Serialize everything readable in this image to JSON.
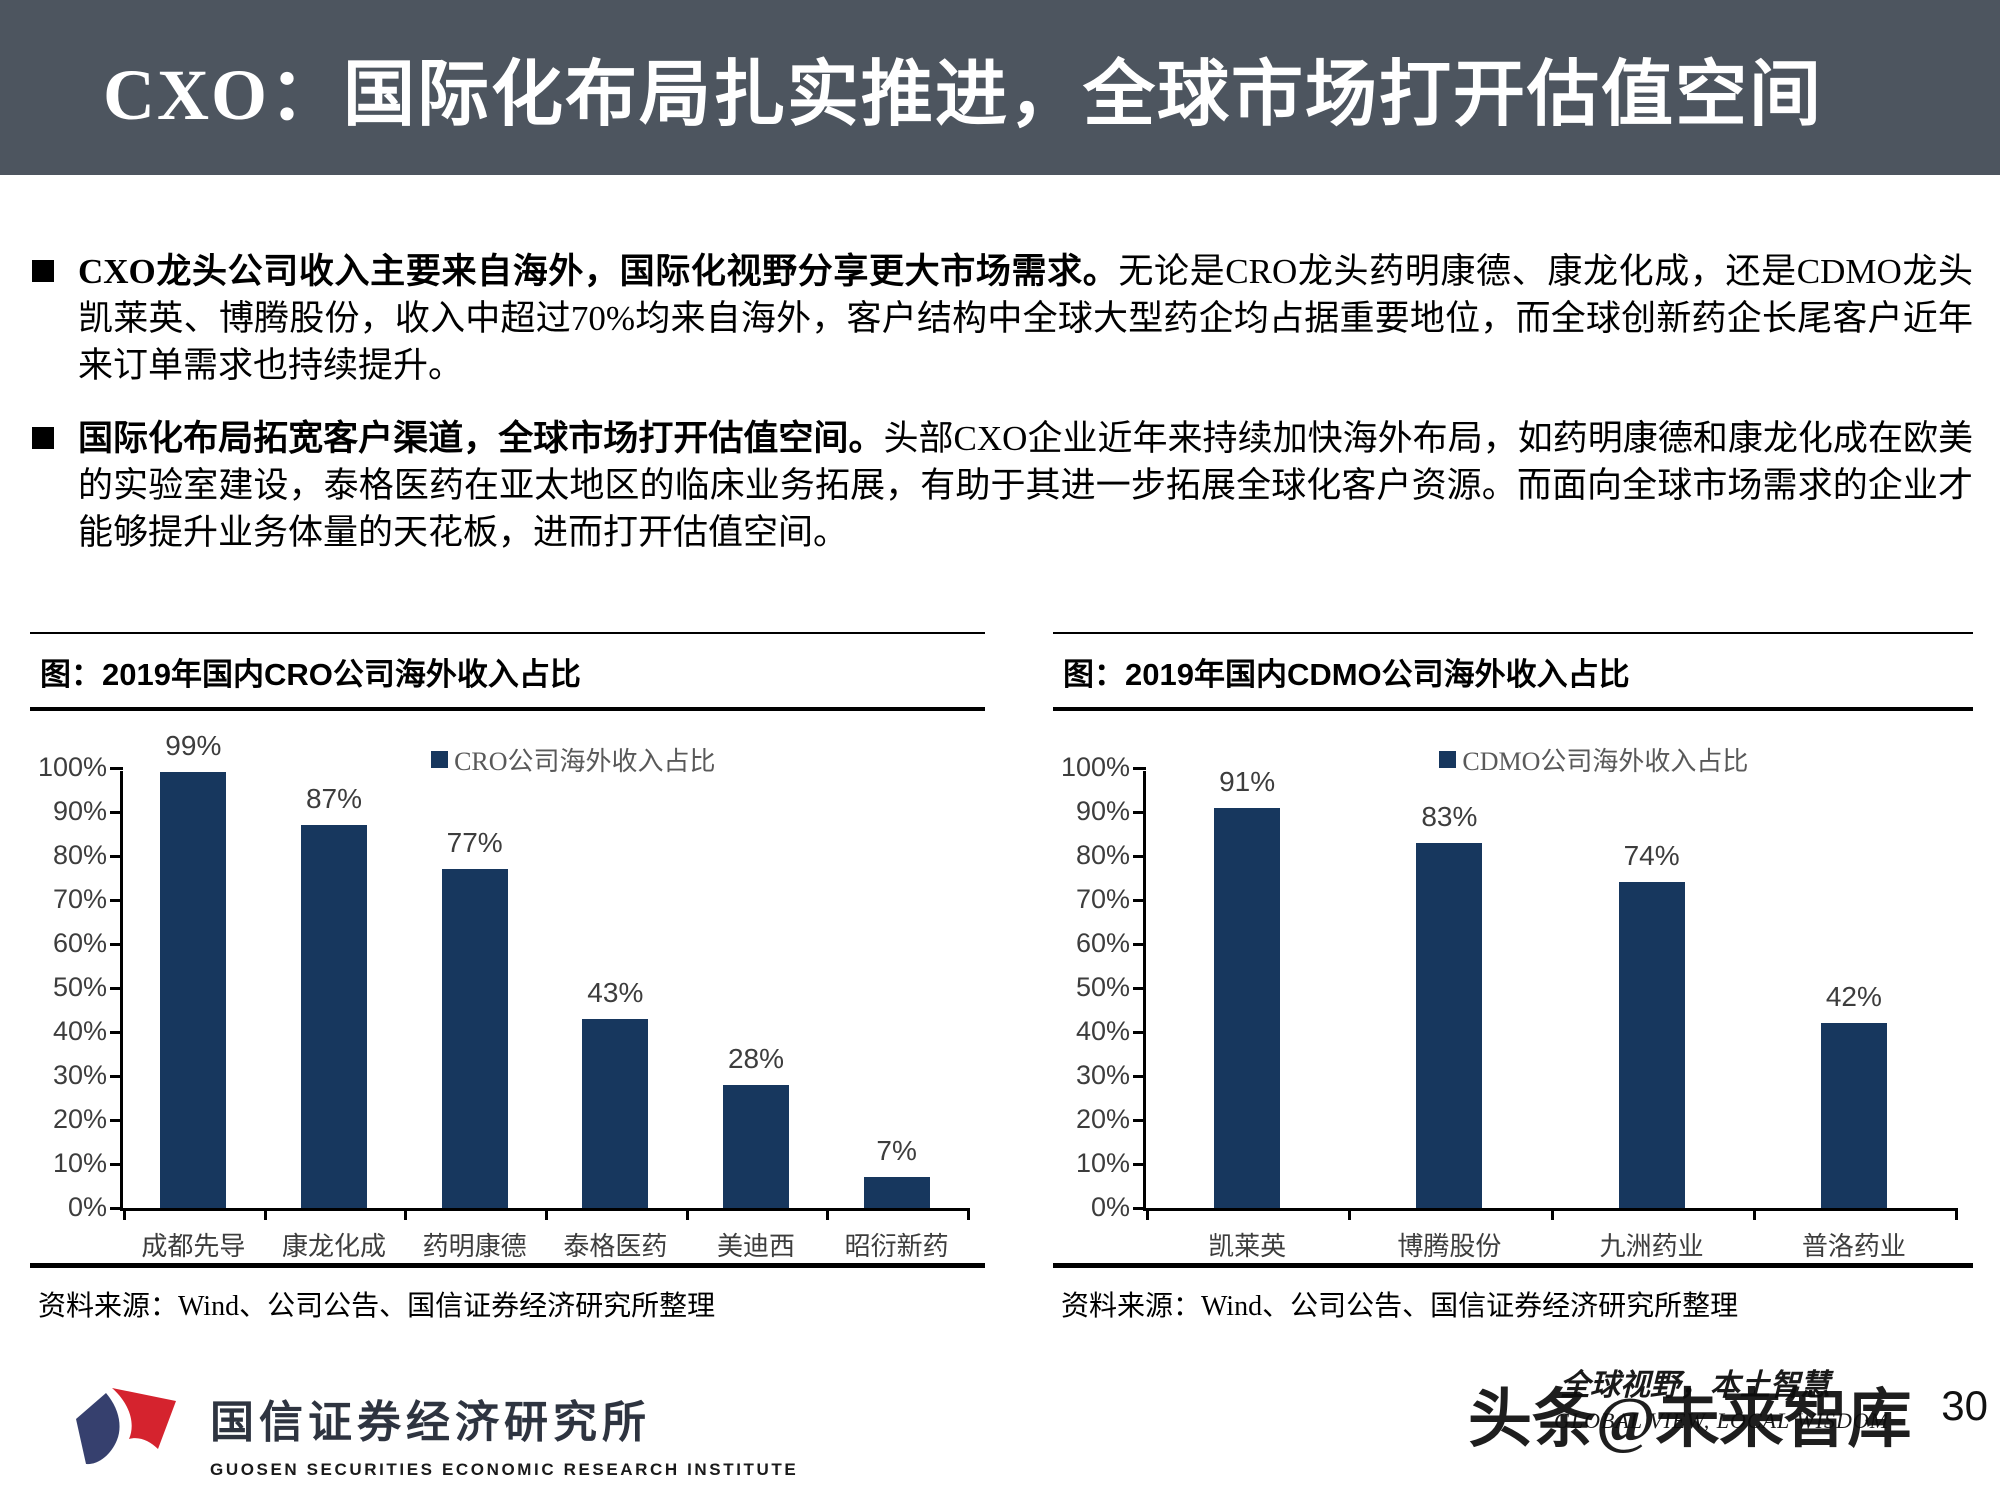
{
  "header": {
    "title": "CXO：国际化布局扎实推进，全球市场打开估值空间",
    "bg_color": "#4d555f"
  },
  "bullets": [
    {
      "bold": "CXO龙头公司收入主要来自海外，国际化视野分享更大市场需求。",
      "rest": "无论是CRO龙头药明康德、康龙化成，还是CDMO龙头凯莱英、博腾股份，收入中超过70%均来自海外，客户结构中全球大型药企均占据重要地位，而全球创新药企长尾客户近年来订单需求也持续提升。"
    },
    {
      "bold": "国际化布局拓宽客户渠道，全球市场打开估值空间。",
      "rest": "头部CXO企业近年来持续加快海外布局，如药明康德和康龙化成在欧美的实验室建设，泰格医药在亚太地区的临床业务拓展，有助于其进一步拓展全球化客户资源。而面向全球市场需求的企业才能够提升业务体量的天花板，进而打开估值空间。"
    }
  ],
  "chart_data": [
    {
      "type": "bar",
      "title": "图：2019年国内CRO公司海外收入占比",
      "legend": "CRO公司海外收入占比",
      "categories": [
        "成都先导",
        "康龙化成",
        "药明康德",
        "泰格医药",
        "美迪西",
        "昭衍新药"
      ],
      "values": [
        99,
        87,
        77,
        43,
        28,
        7
      ],
      "labels": [
        "99%",
        "87%",
        "77%",
        "43%",
        "28%",
        "7%"
      ],
      "ylim": [
        0,
        100
      ],
      "ytick_step": 10,
      "grid": false,
      "legend_position": "top-center",
      "bar_color": "#17375e",
      "source": "资料来源：Wind、公司公告、国信证券经济研究所整理"
    },
    {
      "type": "bar",
      "title": "图：2019年国内CDMO公司海外收入占比",
      "legend": "CDMO公司海外收入占比",
      "categories": [
        "凯莱英",
        "博腾股份",
        "九洲药业",
        "普洛药业"
      ],
      "values": [
        91,
        83,
        74,
        42
      ],
      "labels": [
        "91%",
        "83%",
        "74%",
        "42%"
      ],
      "ylim": [
        0,
        100
      ],
      "ytick_step": 10,
      "grid": false,
      "legend_position": "top-center",
      "bar_color": "#17375e",
      "source": "资料来源：Wind、公司公告、国信证券经济研究所整理"
    }
  ],
  "footer": {
    "logo_cn": "国信证券经济研究所",
    "logo_en": "GUOSEN SECURITIES ECONOMIC RESEARCH INSTITUTE",
    "logo_blue": "#36406e",
    "logo_red": "#d5232e",
    "slogan_cn": "全球视野，本土智慧",
    "slogan_en": "GLOBAL VIEW, LOCAL WISDOM",
    "watermark": "头条@未来智库",
    "page_number": "30"
  }
}
